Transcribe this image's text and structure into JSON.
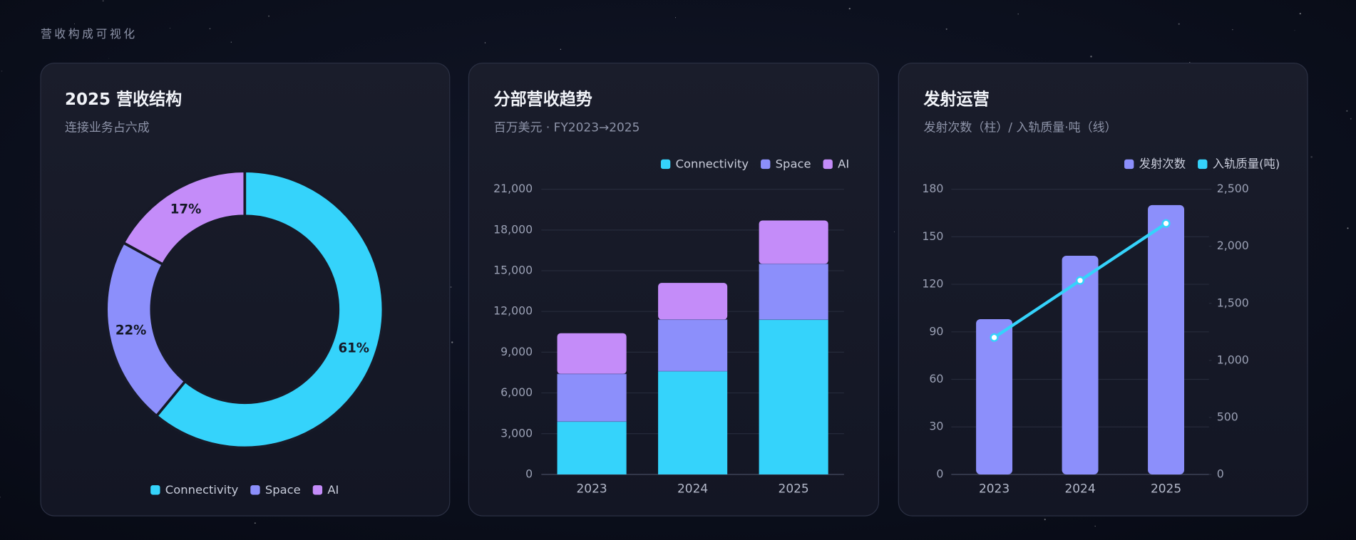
{
  "page_title": "营收构成可视化",
  "chart_data": [
    {
      "type": "donut",
      "title": "2025 营收结构",
      "subtitle": "连接业务占六成",
      "categories": [
        "Connectivity",
        "Space",
        "AI"
      ],
      "values": [
        61,
        22,
        17
      ],
      "value_labels": [
        "61%",
        "22%",
        "17%"
      ],
      "colors": [
        "#35d3fb",
        "#8c8ffb",
        "#c48cf9"
      ],
      "legend": "bottom"
    },
    {
      "type": "stacked_bar",
      "title": "分部营收趋势",
      "subtitle": "百万美元 · FY2023→2025",
      "categories": [
        "2023",
        "2024",
        "2025"
      ],
      "series": [
        {
          "name": "Connectivity",
          "color": "#35d3fb",
          "values": [
            3900,
            7600,
            11400
          ]
        },
        {
          "name": "Space",
          "color": "#8c8ffb",
          "values": [
            3500,
            3800,
            4100
          ]
        },
        {
          "name": "AI",
          "color": "#c48cf9",
          "values": [
            3000,
            2700,
            3200
          ]
        }
      ],
      "ylim": [
        0,
        21000
      ],
      "yticks": [
        0,
        {
          "value": 3000,
          "label": "3,000"
        },
        {
          "value": 6000,
          "label": "6,000"
        },
        {
          "value": 9000,
          "label": "9,000"
        },
        {
          "value": 12000,
          "label": "12,000"
        },
        {
          "value": 15000,
          "label": "15,000"
        },
        {
          "value": 18000,
          "label": "18,000"
        },
        {
          "value": 21000,
          "label": "21,000"
        }
      ],
      "grid": true,
      "legend": "top-right"
    },
    {
      "type": "bar_line",
      "title": "发射运营",
      "subtitle": "发射次数（柱）/ 入轨质量·吨（线）",
      "categories": [
        "2023",
        "2024",
        "2025"
      ],
      "series": [
        {
          "name": "发射次数",
          "color": "#8c8ffb",
          "type": "bar",
          "values": [
            98,
            138,
            170
          ]
        },
        {
          "name": "入轨质量(吨)",
          "color": "#35d3fb",
          "type": "line",
          "axis": "y2",
          "values": [
            1200,
            1700,
            2200
          ]
        }
      ],
      "ylim": [
        0,
        180
      ],
      "yticks": [
        0,
        30,
        60,
        90,
        120,
        150,
        180
      ],
      "y2lim": [
        0,
        2500
      ],
      "y2ticks": [
        0,
        500,
        {
          "value": 1000,
          "label": "1,000"
        },
        {
          "value": 1500,
          "label": "1,500"
        },
        {
          "value": 2000,
          "label": "2,000"
        },
        {
          "value": 2500,
          "label": "2,500"
        }
      ],
      "grid": true,
      "legend": "top-right"
    }
  ]
}
